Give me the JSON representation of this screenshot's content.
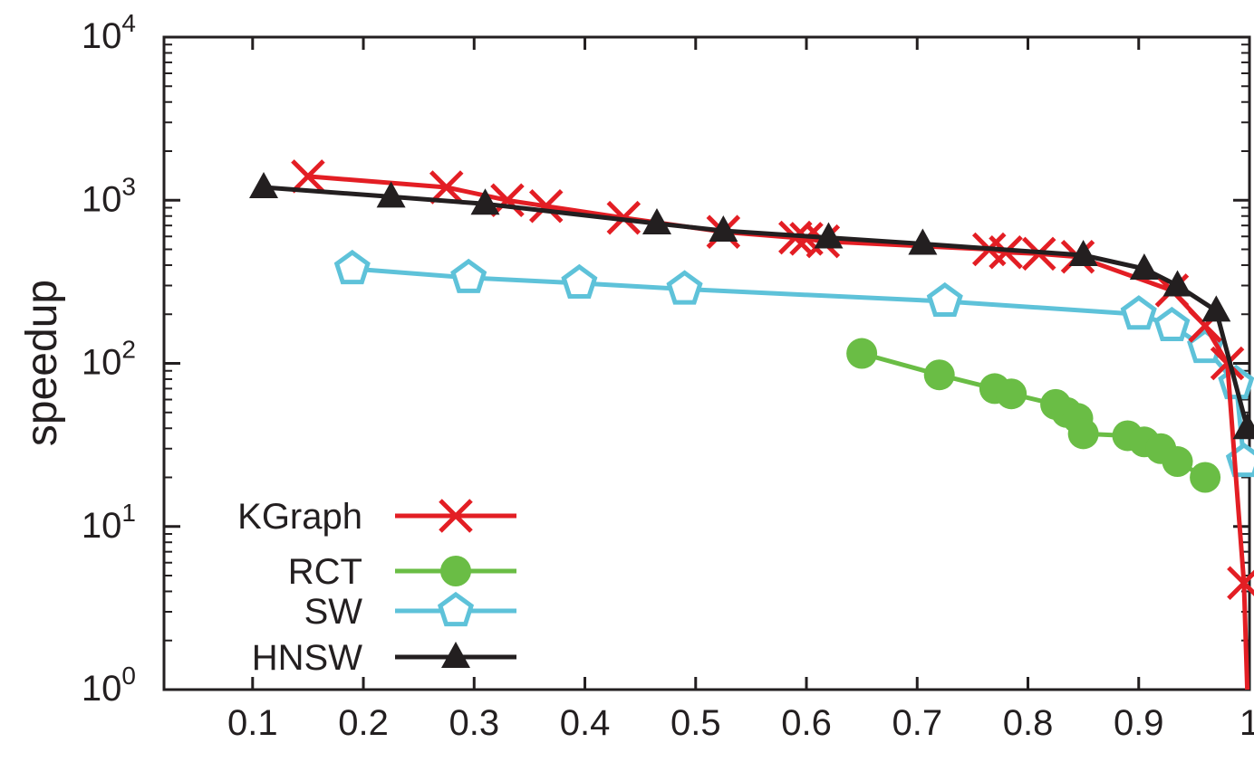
{
  "chart_data": {
    "type": "line",
    "title": "",
    "xlabel": "",
    "ylabel": "speedup",
    "y_scale": "log",
    "xlim": [
      0.02,
      1.0
    ],
    "ylim": [
      1,
      10000
    ],
    "x_ticks": [
      "0.1",
      "0.2",
      "0.3",
      "0.4",
      "0.5",
      "0.6",
      "0.7",
      "0.8",
      "0.9",
      "1"
    ],
    "y_ticks": [
      {
        "base": "10",
        "exp": "0"
      },
      {
        "base": "10",
        "exp": "1"
      },
      {
        "base": "10",
        "exp": "2"
      },
      {
        "base": "10",
        "exp": "3"
      },
      {
        "base": "10",
        "exp": "4"
      }
    ],
    "grid": false,
    "legend_position": "bottom-left",
    "series": [
      {
        "name": "KGraph",
        "color": "#e31e24",
        "marker": "cross",
        "x": [
          0.15,
          0.275,
          0.33,
          0.365,
          0.435,
          0.525,
          0.59,
          0.6,
          0.615,
          0.765,
          0.78,
          0.81,
          0.845,
          0.93,
          0.96,
          0.98,
          0.995,
          0.998
        ],
        "y": [
          1400,
          1200,
          1000,
          920,
          780,
          640,
          590,
          580,
          560,
          500,
          480,
          470,
          450,
          280,
          170,
          100,
          4.5,
          1
        ]
      },
      {
        "name": "RCT",
        "color": "#6abd45",
        "marker": "circle",
        "x": [
          0.65,
          0.72,
          0.77,
          0.785,
          0.825,
          0.835,
          0.845,
          0.85,
          0.89,
          0.905,
          0.92,
          0.935,
          0.96
        ],
        "y": [
          115,
          85,
          70,
          65,
          56,
          50,
          46,
          37,
          36,
          33,
          30,
          25,
          20
        ]
      },
      {
        "name": "SW",
        "color": "#5ec2d9",
        "marker": "pentagon",
        "x": [
          0.19,
          0.295,
          0.395,
          0.49,
          0.725,
          0.9,
          0.93,
          0.96,
          0.988,
          0.995
        ],
        "y": [
          380,
          335,
          310,
          285,
          240,
          200,
          170,
          125,
          75,
          25
        ]
      },
      {
        "name": "HNSW",
        "color": "#231f20",
        "marker": "triangle",
        "x": [
          0.11,
          0.225,
          0.31,
          0.465,
          0.525,
          0.62,
          0.705,
          0.85,
          0.905,
          0.935,
          0.97,
          0.998
        ],
        "y": [
          1200,
          1050,
          950,
          720,
          650,
          590,
          540,
          460,
          380,
          300,
          210,
          40
        ]
      }
    ]
  }
}
